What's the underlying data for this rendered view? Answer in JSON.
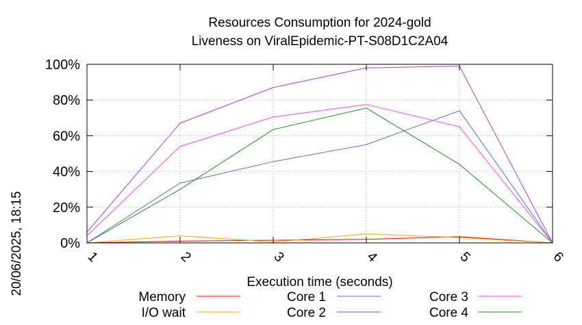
{
  "chart_data": {
    "type": "line",
    "title_lines": [
      "Resources Consumption for 2024-gold",
      "Liveness on ViralEpidemic-PT-S08D1C2A04"
    ],
    "xlabel": "Execution time (seconds)",
    "ylabel": "",
    "side_label": "20/06/2025, 18:15",
    "x": [
      1,
      2,
      3,
      4,
      5,
      6
    ],
    "xlim": [
      1,
      6
    ],
    "ylim": [
      0,
      100
    ],
    "x_ticks": [
      "1",
      "2",
      "3",
      "4",
      "5",
      "6"
    ],
    "y_ticks": [
      "0%",
      "20%",
      "40%",
      "60%",
      "80%",
      "100%"
    ],
    "y_tick_values": [
      0,
      20,
      40,
      60,
      80,
      100
    ],
    "grid": true,
    "legend_position": "bottom",
    "series": [
      {
        "name": "Memory",
        "color": "#ff0000",
        "values": [
          0,
          1,
          1.5,
          2,
          3.5,
          0
        ]
      },
      {
        "name": "I/O wait",
        "color": "#ffa500",
        "values": [
          0,
          4,
          0.5,
          5,
          3,
          0
        ]
      },
      {
        "name": "Core 1",
        "color": "#4f74d0",
        "values": [
          0,
          33.5,
          45.5,
          55,
          74,
          0
        ]
      },
      {
        "name": "Core 2",
        "color": "#a040f0",
        "values": [
          6,
          67,
          87,
          98,
          99,
          0
        ]
      },
      {
        "name": "Core 3",
        "color": "#ff44ff",
        "values": [
          4,
          54,
          70.5,
          77.5,
          65,
          0
        ]
      },
      {
        "name": "Core 4",
        "color": "#228b22",
        "values": [
          0,
          30,
          63.5,
          75.5,
          44,
          0
        ]
      }
    ]
  }
}
